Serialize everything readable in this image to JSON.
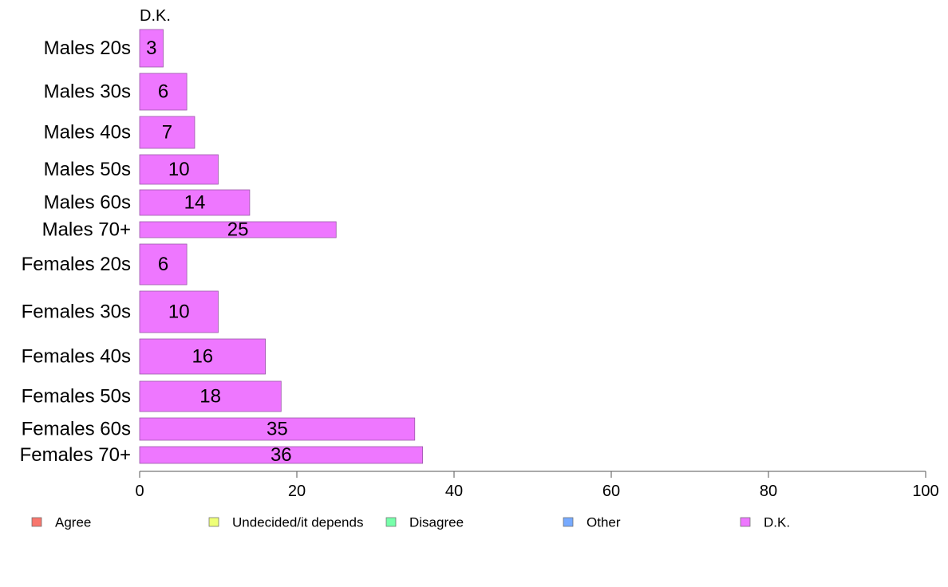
{
  "chart_data": {
    "type": "bar",
    "orientation": "horizontal",
    "panel_label": "D.K.",
    "categories": [
      "Males 20s",
      "Males 30s",
      "Males 40s",
      "Males 50s",
      "Males 60s",
      "Males 70+",
      "Females 20s",
      "Females 30s",
      "Females 40s",
      "Females 50s",
      "Females 60s",
      "Females 70+"
    ],
    "series": [
      {
        "name": "D.K.",
        "color": "#EE77FF",
        "values": [
          3,
          6,
          7,
          10,
          14,
          25,
          6,
          10,
          16,
          18,
          35,
          36
        ]
      }
    ],
    "xlim": [
      0,
      100
    ],
    "xticks": [
      0,
      20,
      40,
      60,
      80,
      100
    ],
    "xlabel": "",
    "ylabel": "",
    "grid": false,
    "legend": {
      "placement": "bottom",
      "entries": [
        {
          "label": "Agree",
          "color": "#F8766D"
        },
        {
          "label": "Undecided/it depends",
          "color": "#EEFF77"
        },
        {
          "label": "Disagree",
          "color": "#77FFAA"
        },
        {
          "label": "Other",
          "color": "#77AAFF"
        },
        {
          "label": "D.K.",
          "color": "#EE77FF"
        }
      ]
    }
  }
}
